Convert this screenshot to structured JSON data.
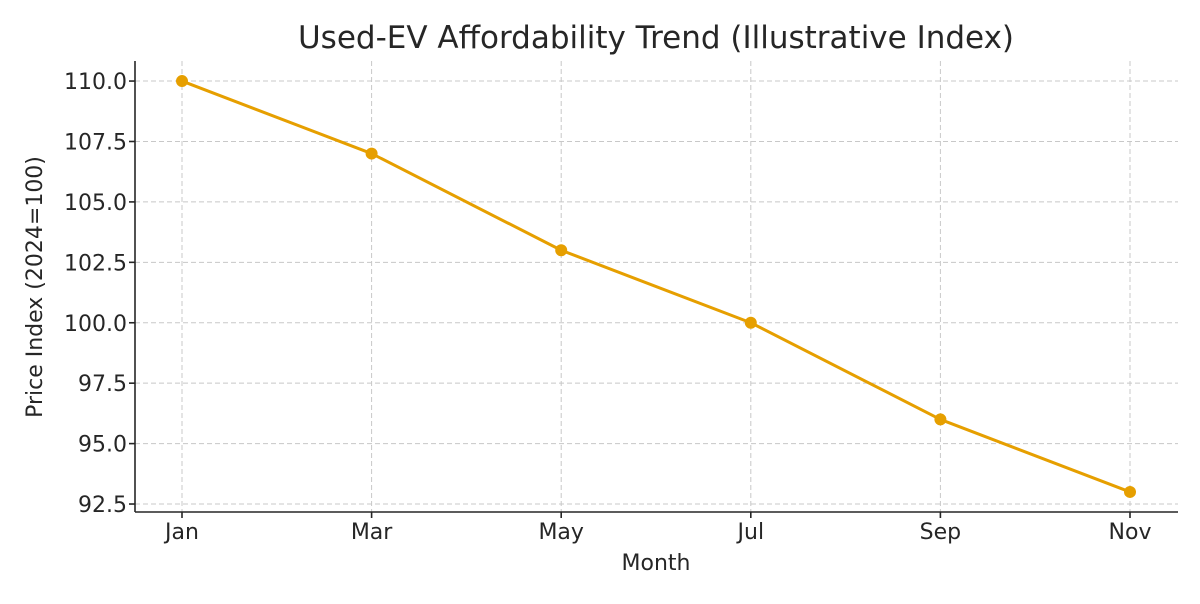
{
  "chart_data": {
    "type": "line",
    "title": "Used-EV Affordability Trend (Illustrative Index)",
    "xlabel": "Month",
    "ylabel": "Price Index (2024=100)",
    "categories": [
      "Jan",
      "Mar",
      "May",
      "Jul",
      "Sep",
      "Nov"
    ],
    "series": [
      {
        "values": [
          110,
          107,
          103,
          100,
          96,
          93
        ],
        "color": "#E69F00",
        "marker": "circle"
      }
    ],
    "yticks": [
      "92.5",
      "95.0",
      "97.5",
      "100.0",
      "102.5",
      "105.0",
      "107.5",
      "110.0"
    ],
    "ylim": [
      92.17,
      110.83
    ],
    "grid": true,
    "grid_style": "dashed",
    "legend": "none"
  }
}
